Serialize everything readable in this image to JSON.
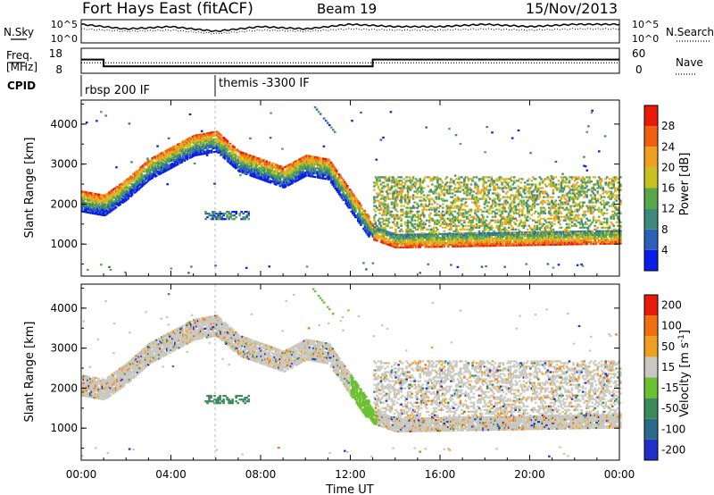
{
  "header": {
    "title": "Fort Hays East (fitACF)",
    "beam": "Beam 19",
    "date": "15/Nov/2013"
  },
  "chart_data": [
    {
      "type": "line",
      "panel": "noise",
      "left_label": "N.Sky",
      "right_label": "N.Search",
      "left_ticks": [
        "10^5",
        "10^0"
      ],
      "right_ticks": [
        "10^5",
        "10^0"
      ],
      "x": [
        0,
        2,
        4,
        6,
        8,
        10,
        12,
        14,
        16,
        18,
        20,
        22,
        24
      ],
      "series": [
        {
          "style": "solid",
          "values": [
            0.8,
            0.6,
            0.7,
            0.5,
            0.7,
            0.6,
            0.8,
            0.7,
            0.7,
            0.8,
            0.7,
            0.8,
            0.8
          ]
        },
        {
          "style": "dotted",
          "values": [
            0.6,
            0.5,
            0.55,
            0.4,
            0.55,
            0.5,
            0.6,
            0.55,
            0.55,
            0.6,
            0.55,
            0.6,
            0.6
          ]
        }
      ]
    },
    {
      "type": "line",
      "panel": "frequency",
      "left_label": [
        "Freq.",
        "[MHz]"
      ],
      "right_label": "Nave",
      "left_ticks": [
        "18",
        "8"
      ],
      "right_ticks": [
        "60",
        "0"
      ],
      "left_ylim": [
        8,
        18
      ],
      "right_ylim": [
        0,
        60
      ],
      "series": [
        {
          "style": "solid",
          "axis": "left",
          "points": [
            [
              0,
              13.5
            ],
            [
              1,
              13.5
            ],
            [
              1,
              10.8
            ],
            [
              13,
              10.8
            ],
            [
              13,
              13.5
            ],
            [
              24,
              13.5
            ]
          ]
        },
        {
          "style": "dotted",
          "axis": "right",
          "points": [
            [
              0,
              25
            ],
            [
              24,
              25
            ]
          ]
        }
      ]
    },
    {
      "type": "table",
      "panel": "cpid",
      "label": "CPID",
      "segments": [
        {
          "start": 0,
          "label": "rbsp 200 IF"
        },
        {
          "start": 6,
          "label": "themis -3300 IF"
        }
      ]
    },
    {
      "type": "heatmap",
      "panel": "power",
      "ylabel": "Slant Range [km]",
      "xlim": [
        0,
        24
      ],
      "ylim": [
        200,
        4600
      ],
      "yticks": [
        1000,
        2000,
        3000,
        4000
      ],
      "colorbar": {
        "label": "Power [dB]",
        "ticks": [
          "4",
          "8",
          "12",
          "16",
          "20",
          "24",
          "28"
        ],
        "colors": [
          "#0a1ee6",
          "#2b5fb8",
          "#3d8a7a",
          "#5aa64a",
          "#c8c020",
          "#f0a020",
          "#f06010",
          "#e81a0a"
        ]
      },
      "features": [
        {
          "name": "main echo band",
          "points": [
            [
              0,
              2100
            ],
            [
              1,
              2000
            ],
            [
              2,
              2400
            ],
            [
              3,
              2900
            ],
            [
              4,
              3200
            ],
            [
              5,
              3500
            ],
            [
              6,
              3600
            ],
            [
              7,
              3100
            ],
            [
              8,
              2900
            ],
            [
              9,
              2700
            ],
            [
              10,
              3000
            ],
            [
              11,
              2900
            ],
            [
              12,
              2100
            ],
            [
              13,
              1300
            ],
            [
              14,
              1100
            ],
            [
              24,
              1200
            ]
          ]
        },
        {
          "name": "broad scatter",
          "x_range": [
            13,
            24
          ],
          "y_range": [
            1100,
            2700
          ]
        }
      ]
    },
    {
      "type": "heatmap",
      "panel": "velocity",
      "ylabel": "Slant Range [km]",
      "xlim": [
        0,
        24
      ],
      "ylim": [
        200,
        4600
      ],
      "yticks": [
        1000,
        2000,
        3000,
        4000
      ],
      "xlabel": "Time UT",
      "xticks": [
        "00:00",
        "04:00",
        "08:00",
        "12:00",
        "16:00",
        "20:00",
        "00:00"
      ],
      "colorbar": {
        "label": "Velocity [m s^-1]",
        "ticks": [
          "200",
          "100",
          "50",
          "15",
          "-15",
          "-50",
          "-100",
          "-200"
        ],
        "colors": [
          "#2030c8",
          "#2a6a8a",
          "#3a8a5a",
          "#6ac030",
          "#c8c8c0",
          "#f0a020",
          "#f07010",
          "#e81a0a"
        ]
      }
    }
  ]
}
